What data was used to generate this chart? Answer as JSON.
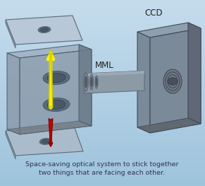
{
  "bg_top": "#c5dced",
  "bg_bottom": "#9ec4dc",
  "title_ccd": "CCD",
  "label_mml": "MML",
  "caption_line1": "Space-saving optical system to stick together",
  "caption_line2": "two things that are facing each other.",
  "caption_fontsize": 6.8,
  "label_fontsize": 8.5,
  "arrow_yellow": "#ffee00",
  "arrow_red": "#cc0000",
  "plate_top_color": "#b8c8d8",
  "plate_bot_color": "#aabccc",
  "plate_edge": "#5a6a78",
  "box_front": "#8a9aaa",
  "box_top_face": "#9eb0c0",
  "box_right_face": "#6a7a88",
  "box_edge": "#4a5a68",
  "ccd_front": "#7a8a98",
  "ccd_top_face": "#8ea0b0",
  "ccd_right_face": "#606878",
  "ccd_edge": "#404858",
  "tube_body": "#8c9aa6",
  "tube_top": "#9eaab6",
  "tube_edge": "#5a6878",
  "lens_ring_color": "#707880",
  "hole_outer": "#5a6a78",
  "hole_inner": "#485868"
}
